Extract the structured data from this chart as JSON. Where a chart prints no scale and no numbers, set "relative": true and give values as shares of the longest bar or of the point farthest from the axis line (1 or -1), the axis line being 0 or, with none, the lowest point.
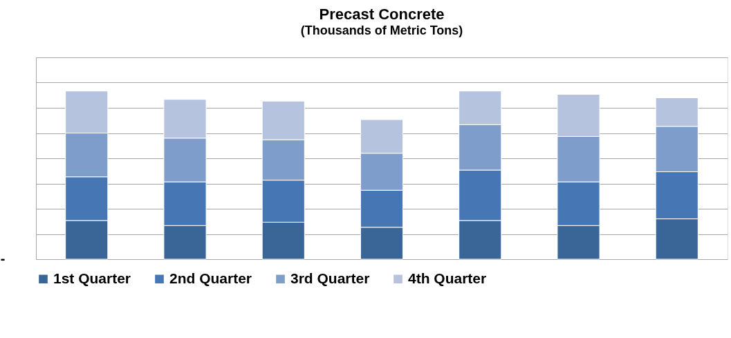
{
  "chart_data": {
    "type": "bar",
    "title": "Precast Concrete",
    "subtitle": "(Thousands of Metric Tons)",
    "relative": true,
    "stacked": true,
    "grid": "y",
    "legend": "bottom",
    "categories": [
      null,
      null,
      null,
      null,
      null,
      null,
      null
    ],
    "series": [
      {
        "name": "1st Quarter",
        "color": "#3a6597",
        "values": [
          0.23,
          0.2,
          0.22,
          0.19,
          0.23,
          0.2,
          0.24
        ]
      },
      {
        "name": "2nd Quarter",
        "color": "#4677b4",
        "values": [
          0.26,
          0.26,
          0.25,
          0.22,
          0.3,
          0.26,
          0.28
        ]
      },
      {
        "name": "3rd Quarter",
        "color": "#7f9dcb",
        "values": [
          0.26,
          0.26,
          0.24,
          0.22,
          0.27,
          0.27,
          0.27
        ]
      },
      {
        "name": "4th Quarter",
        "color": "#b5c3de",
        "values": [
          0.25,
          0.23,
          0.23,
          0.2,
          0.2,
          0.25,
          0.17
        ]
      }
    ],
    "annotations": [
      "-"
    ]
  }
}
